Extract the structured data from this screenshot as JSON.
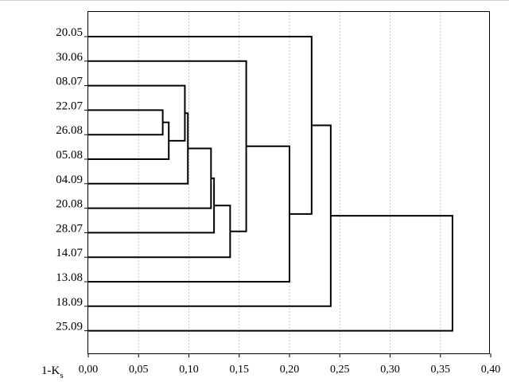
{
  "chart_data": {
    "type": "dendrogram",
    "xlabel_main": "1-K",
    "xlabel_sub": "s",
    "xlim": [
      0,
      0.4
    ],
    "grid": true,
    "x_ticks": [
      0.0,
      0.05,
      0.1,
      0.15,
      0.2,
      0.25,
      0.3,
      0.35,
      0.4
    ],
    "x_tick_labels": [
      "0,00",
      "0,05",
      "0,10",
      "0,15",
      "0,20",
      "0,25",
      "0,30",
      "0,35",
      "0,40"
    ],
    "leaves": [
      "20.05",
      "30.06",
      "08.07",
      "22.07",
      "26.08",
      "05.08",
      "04.09",
      "20.08",
      "28.07",
      "14.07",
      "13.08",
      "18.09",
      "25.09"
    ],
    "merges": [
      {
        "id": "A",
        "children": [
          "22.07",
          "26.08"
        ],
        "distance": 0.074
      },
      {
        "id": "B",
        "children": [
          "A",
          "05.08"
        ],
        "distance": 0.08
      },
      {
        "id": "C",
        "children": [
          "08.07",
          "B"
        ],
        "distance": 0.096
      },
      {
        "id": "D",
        "children": [
          "C",
          "04.09"
        ],
        "distance": 0.099
      },
      {
        "id": "E",
        "children": [
          "D",
          "20.08"
        ],
        "distance": 0.122
      },
      {
        "id": "F",
        "children": [
          "E",
          "28.07"
        ],
        "distance": 0.125
      },
      {
        "id": "G",
        "children": [
          "F",
          "14.07"
        ],
        "distance": 0.141
      },
      {
        "id": "H",
        "children": [
          "30.06",
          "G"
        ],
        "distance": 0.157
      },
      {
        "id": "I",
        "children": [
          "H",
          "13.08"
        ],
        "distance": 0.2
      },
      {
        "id": "J",
        "children": [
          "20.05",
          "I"
        ],
        "distance": 0.222
      },
      {
        "id": "K",
        "children": [
          "J",
          "18.09"
        ],
        "distance": 0.241
      },
      {
        "id": "L",
        "children": [
          "K",
          "25.09"
        ],
        "distance": 0.362
      }
    ]
  }
}
